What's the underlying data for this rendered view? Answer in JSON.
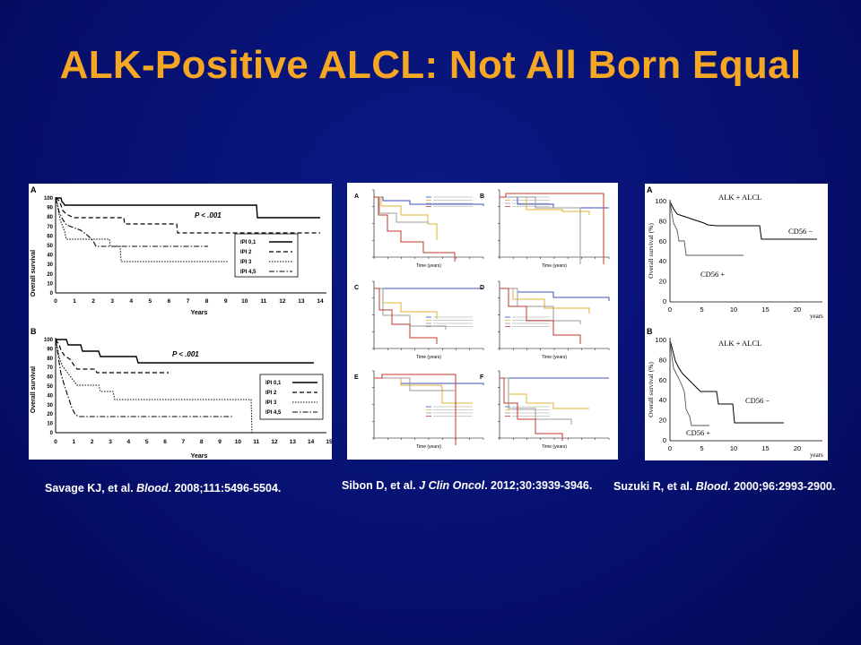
{
  "slide": {
    "title": "ALK-Positive ALCL: Not All Born Equal"
  },
  "figures": {
    "savage": {
      "panel_a": {
        "label": "A",
        "ylabel": "Overall survival",
        "xlabel": "Years",
        "pvalue": "P < .001",
        "yticks": [
          "100",
          "90",
          "80",
          "70",
          "60",
          "50",
          "40",
          "30",
          "20",
          "10",
          "0"
        ],
        "xticks": [
          "0",
          "1",
          "2",
          "3",
          "4",
          "5",
          "6",
          "7",
          "8",
          "9",
          "10",
          "11",
          "12",
          "13",
          "14"
        ],
        "legend": [
          "IPI 0,1",
          "IPI 2",
          "IPI 3",
          "IPI 4,5"
        ]
      },
      "panel_b": {
        "label": "B",
        "ylabel": "Overall survival",
        "xlabel": "Years",
        "pvalue": "P < .001",
        "yticks": [
          "100",
          "90",
          "80",
          "70",
          "60",
          "50",
          "40",
          "30",
          "20",
          "10",
          "0"
        ],
        "xticks": [
          "0",
          "1",
          "2",
          "3",
          "4",
          "5",
          "6",
          "7",
          "8",
          "9",
          "10",
          "11",
          "12",
          "13",
          "14",
          "15"
        ],
        "legend": [
          "IPI 0,1",
          "IPI 2",
          "IPI 3",
          "IPI 4,5"
        ]
      }
    },
    "sibon": {
      "panels": [
        "A",
        "B",
        "C",
        "D",
        "E",
        "F"
      ],
      "colors": [
        "#3b4fb8",
        "#e0b030",
        "#9a9a9a",
        "#c0392b"
      ],
      "xlabel": "Time (years)"
    },
    "suzuki": {
      "panel_a": {
        "label": "A",
        "title": "ALK + ALCL",
        "ylabel": "Overall survival (%)",
        "curve_top": "CD56 −",
        "curve_bottom": "CD56 +",
        "yticks": [
          "100",
          "80",
          "60",
          "40",
          "20",
          "0"
        ],
        "xticks": [
          "0",
          "5",
          "10",
          "15",
          "20"
        ],
        "xunit": "years"
      },
      "panel_b": {
        "label": "B",
        "title": "ALK + ALCL",
        "ylabel": "Overall survival (%)",
        "curve_top": "CD56 −",
        "curve_bottom": "CD56 +",
        "yticks": [
          "100",
          "80",
          "60",
          "40",
          "20",
          "0"
        ],
        "xticks": [
          "0",
          "5",
          "10",
          "15",
          "20"
        ],
        "xunit": "years"
      }
    }
  },
  "references": {
    "savage": {
      "authors": "Savage KJ, et al.",
      "journal": "Blood",
      "citation": ". 2008;111:5496-5504."
    },
    "sibon": {
      "authors": "Sibon D, et al.",
      "journal": "J Clin Oncol",
      "citation": ". 2012;30:3939-3946."
    },
    "suzuki": {
      "authors": "Suzuki R, et al.",
      "journal": "Blood",
      "citation": ". 2000;96:2993-2900."
    }
  }
}
